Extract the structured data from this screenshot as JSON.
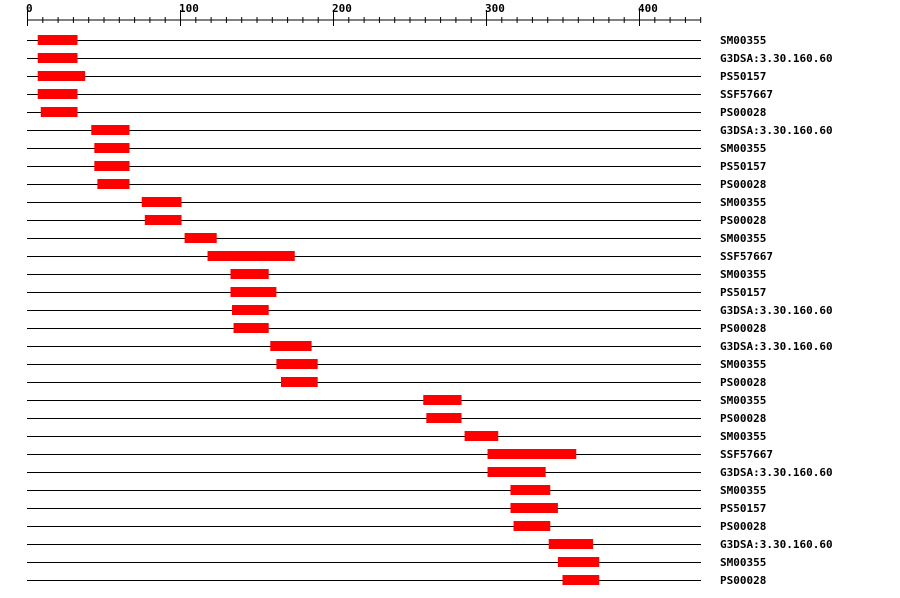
{
  "chart_data": {
    "type": "domain-architecture",
    "axis": {
      "range": [
        0,
        440
      ],
      "major_ticks": [
        0,
        100,
        200,
        300,
        400
      ],
      "minor_tick_step": 10
    },
    "bar_color": "#ff0000",
    "tracks": [
      {
        "label": "SM00355",
        "start": 7,
        "end": 33
      },
      {
        "label": "G3DSA:3.30.160.60",
        "start": 7,
        "end": 33
      },
      {
        "label": "PS50157",
        "start": 7,
        "end": 38
      },
      {
        "label": "SSF57667",
        "start": 7,
        "end": 33
      },
      {
        "label": "PS00028",
        "start": 9,
        "end": 33
      },
      {
        "label": "G3DSA:3.30.160.60",
        "start": 42,
        "end": 67
      },
      {
        "label": "SM00355",
        "start": 44,
        "end": 67
      },
      {
        "label": "PS50157",
        "start": 44,
        "end": 67
      },
      {
        "label": "PS00028",
        "start": 46,
        "end": 67
      },
      {
        "label": "SM00355",
        "start": 75,
        "end": 101
      },
      {
        "label": "PS00028",
        "start": 77,
        "end": 101
      },
      {
        "label": "SM00355",
        "start": 103,
        "end": 124
      },
      {
        "label": "SSF57667",
        "start": 118,
        "end": 175
      },
      {
        "label": "SM00355",
        "start": 133,
        "end": 158
      },
      {
        "label": "PS50157",
        "start": 133,
        "end": 163
      },
      {
        "label": "G3DSA:3.30.160.60",
        "start": 134,
        "end": 158
      },
      {
        "label": "PS00028",
        "start": 135,
        "end": 158
      },
      {
        "label": "G3DSA:3.30.160.60",
        "start": 159,
        "end": 186
      },
      {
        "label": "SM00355",
        "start": 163,
        "end": 190
      },
      {
        "label": "PS00028",
        "start": 166,
        "end": 190
      },
      {
        "label": "SM00355",
        "start": 259,
        "end": 284
      },
      {
        "label": "PS00028",
        "start": 261,
        "end": 284
      },
      {
        "label": "SM00355",
        "start": 286,
        "end": 308
      },
      {
        "label": "SSF57667",
        "start": 301,
        "end": 359
      },
      {
        "label": "G3DSA:3.30.160.60",
        "start": 301,
        "end": 339
      },
      {
        "label": "SM00355",
        "start": 316,
        "end": 342
      },
      {
        "label": "PS50157",
        "start": 316,
        "end": 347
      },
      {
        "label": "PS00028",
        "start": 318,
        "end": 342
      },
      {
        "label": "G3DSA:3.30.160.60",
        "start": 341,
        "end": 370
      },
      {
        "label": "SM00355",
        "start": 347,
        "end": 374
      },
      {
        "label": "PS00028",
        "start": 350,
        "end": 374
      }
    ]
  }
}
